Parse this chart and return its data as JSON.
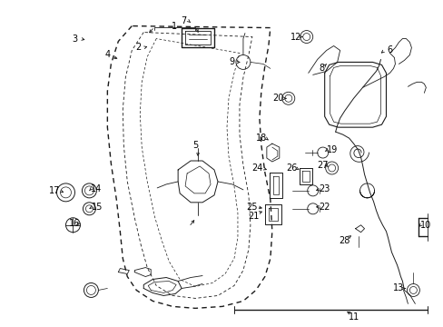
{
  "bg_color": "#ffffff",
  "line_color": "#1a1a1a",
  "text_color": "#000000",
  "font_size": 7.0,
  "figsize": [
    4.89,
    3.6
  ],
  "dpi": 100
}
